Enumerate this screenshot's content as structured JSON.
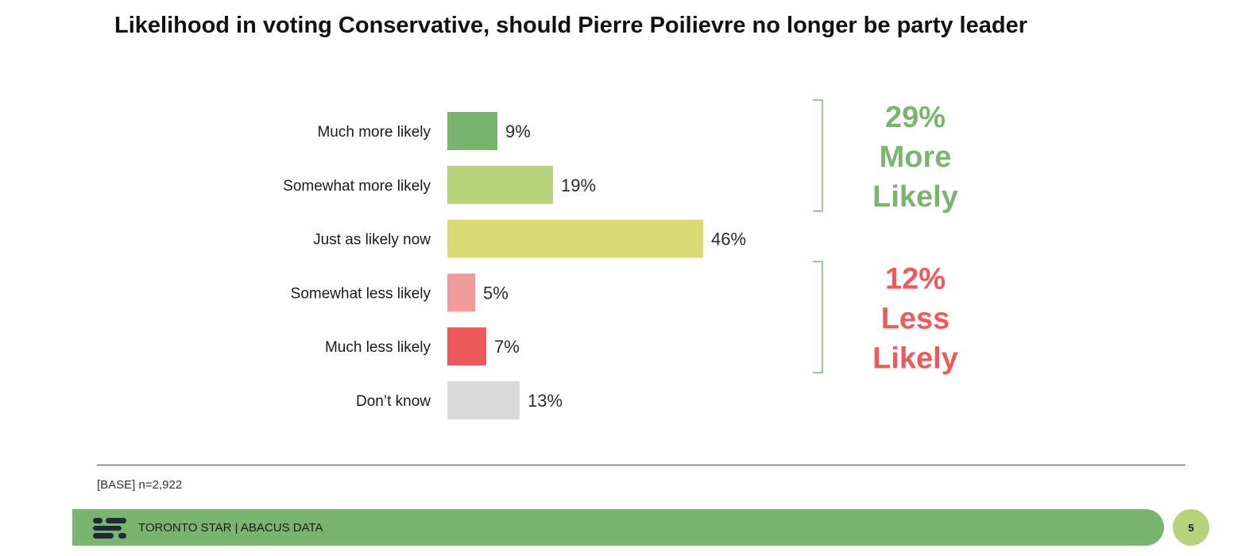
{
  "chart_data": {
    "type": "bar",
    "orientation": "horizontal",
    "title": "Likelihood in voting Conservative, should Pierre Poilievre no longer be party leader",
    "categories": [
      "Much more likely",
      "Somewhat more likely",
      "Just as likely now",
      "Somewhat less likely",
      "Much less likely",
      "Don’t know"
    ],
    "values": [
      9,
      19,
      46,
      5,
      7,
      13
    ],
    "value_labels": [
      "9%",
      "19%",
      "46%",
      "5%",
      "7%",
      "13%"
    ],
    "bar_colors": [
      "#7ab56f",
      "#b6d37c",
      "#d9dc74",
      "#f09a99",
      "#ec5a5b",
      "#d9d9d9"
    ],
    "xlim": [
      0,
      100
    ],
    "grid": false,
    "groups": [
      {
        "name": "More Likely",
        "percent_label": "29%",
        "word1": "More",
        "word2": "Likely",
        "color": "#7ab56f",
        "members": [
          0,
          1
        ]
      },
      {
        "name": "Less Likely",
        "percent_label": "12%",
        "word1": "Less",
        "word2": "Likely",
        "color": "#ec5a5b",
        "members": [
          3,
          4
        ]
      }
    ]
  },
  "base_note": "[BASE] n=2,922",
  "footer": {
    "text": "TORONTO STAR  |  ABACUS DATA",
    "bar_color": "#7ab56f"
  },
  "page_number": "5"
}
